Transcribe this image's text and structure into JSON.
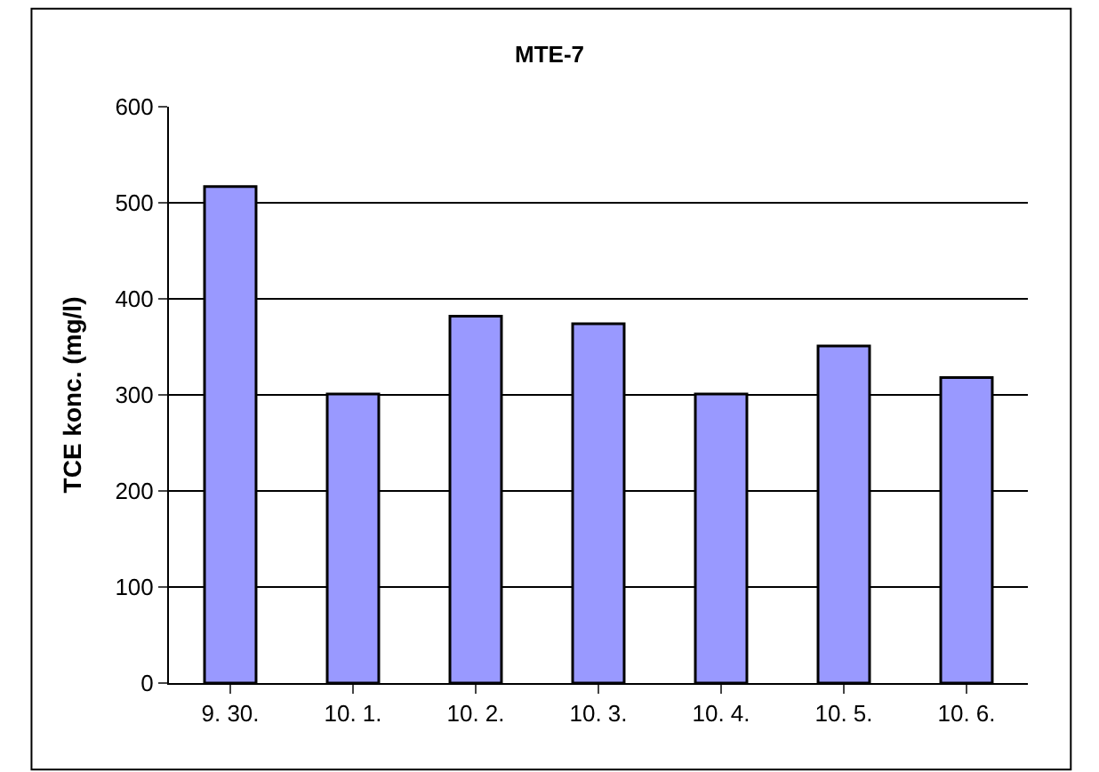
{
  "chart_data": {
    "type": "bar",
    "title": "MTE-7",
    "ylabel": "TCE konc. (mg/l)",
    "categories": [
      "9. 30.",
      "10. 1.",
      "10. 2.",
      "10. 3.",
      "10. 4.",
      "10. 5.",
      "10. 6."
    ],
    "values": [
      517,
      301,
      382,
      374,
      301,
      351,
      318
    ],
    "color": "#9999ff",
    "ylim": [
      0,
      600
    ],
    "yticks": [
      0,
      100,
      200,
      300,
      400,
      500,
      600
    ],
    "grid": "y",
    "legend": false
  }
}
